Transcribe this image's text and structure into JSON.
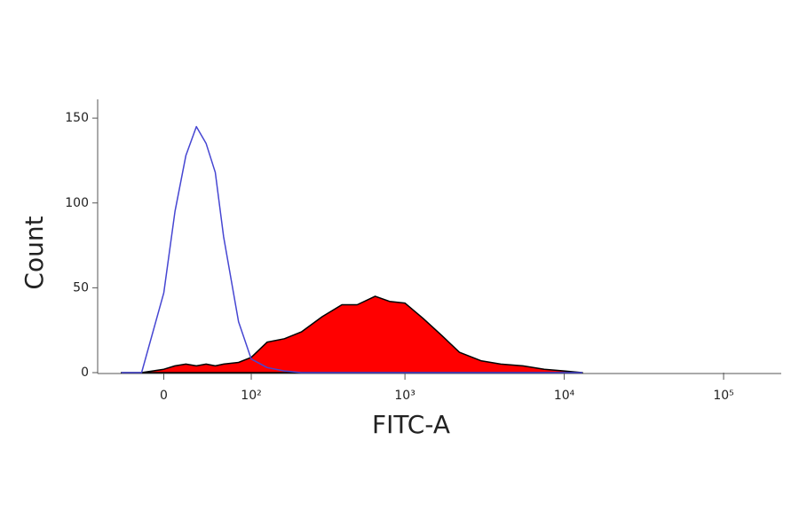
{
  "chart_data": {
    "type": "histogram",
    "xlabel": "FITC-A",
    "ylabel": "Count",
    "xscale": "biexponential",
    "x": [
      -40,
      -20,
      0,
      10,
      20,
      30,
      40,
      50,
      60,
      80,
      100,
      130,
      170,
      220,
      300,
      400,
      500,
      650,
      800,
      1000,
      1300,
      1700,
      2200,
      3000,
      4000,
      5500,
      7500,
      10000,
      13000
    ],
    "series": [
      {
        "name": "Red",
        "color": "#ff0000",
        "fill": true,
        "values": [
          0,
          0,
          2,
          4,
          5,
          4,
          5,
          4,
          5,
          6,
          9,
          18,
          20,
          24,
          33,
          40,
          40,
          45,
          42,
          41,
          32,
          22,
          12,
          7,
          5,
          4,
          2,
          1,
          0
        ]
      },
      {
        "name": "Blue",
        "color": "#4646d2",
        "fill": false,
        "values": [
          0,
          0,
          47,
          95,
          128,
          145,
          135,
          118,
          80,
          30,
          8,
          3,
          1,
          0,
          0,
          0,
          0,
          0,
          0,
          0,
          0,
          0,
          0,
          0,
          0,
          0,
          0,
          0,
          0
        ]
      }
    ],
    "xlim": [
      -68,
      230000
    ],
    "xticks": [
      0,
      {
        "value": 100,
        "label": "10²"
      },
      {
        "value": 1000,
        "label": "10³"
      },
      {
        "value": 10000,
        "label": "10⁴"
      },
      {
        "value": 100000,
        "label": "10⁵"
      }
    ],
    "ylim": [
      0,
      160
    ],
    "yticks": [
      0,
      50,
      100,
      150
    ]
  }
}
